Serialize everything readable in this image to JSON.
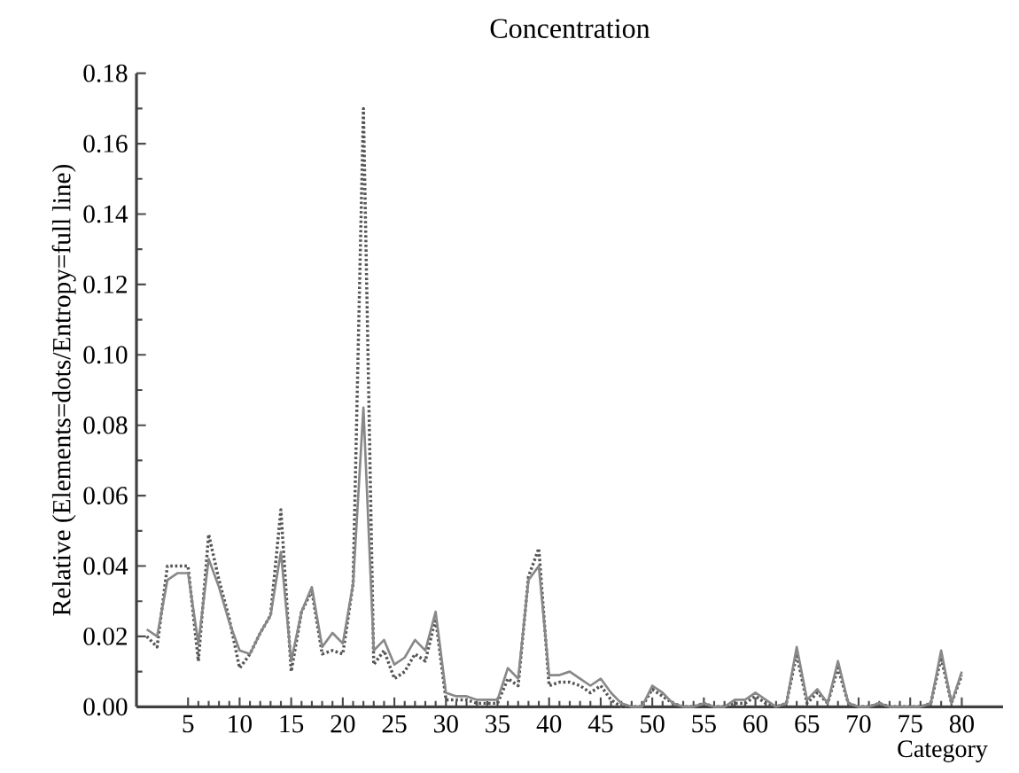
{
  "chart_data": {
    "type": "line",
    "title": "Concentration",
    "xlabel": "Category",
    "ylabel": "Relative (Elements=dots/Entropy=full line)",
    "x": [
      1,
      2,
      3,
      4,
      5,
      6,
      7,
      8,
      9,
      10,
      11,
      12,
      13,
      14,
      15,
      16,
      17,
      18,
      19,
      20,
      21,
      22,
      23,
      24,
      25,
      26,
      27,
      28,
      29,
      30,
      31,
      32,
      33,
      34,
      35,
      36,
      37,
      38,
      39,
      40,
      41,
      42,
      43,
      44,
      45,
      46,
      47,
      48,
      49,
      50,
      51,
      52,
      53,
      54,
      55,
      56,
      57,
      58,
      59,
      60,
      61,
      62,
      63,
      64,
      65,
      66,
      67,
      68,
      69,
      70,
      71,
      72,
      73,
      74,
      75,
      76,
      77,
      78,
      79,
      80
    ],
    "series": [
      {
        "color": "#555555",
        "line_style": "dotted",
        "values": [
          0.02,
          0.017,
          0.04,
          0.04,
          0.04,
          0.013,
          0.049,
          0.036,
          0.025,
          0.011,
          0.015,
          0.021,
          0.026,
          0.056,
          0.01,
          0.027,
          0.033,
          0.015,
          0.016,
          0.015,
          0.035,
          0.17,
          0.012,
          0.016,
          0.008,
          0.01,
          0.015,
          0.013,
          0.025,
          0.002,
          0.002,
          0.002,
          0.001,
          0.001,
          0.001,
          0.008,
          0.006,
          0.037,
          0.045,
          0.006,
          0.007,
          0.007,
          0.006,
          0.004,
          0.006,
          0.002,
          0.0,
          0.0,
          0.0,
          0.005,
          0.003,
          0.001,
          0.0,
          0.0,
          0.001,
          0.0,
          0.0,
          0.001,
          0.001,
          0.003,
          0.001,
          0.0,
          0.001,
          0.015,
          0.001,
          0.004,
          0.001,
          0.011,
          0.001,
          0.0,
          0.0,
          0.001,
          0.0,
          0.0,
          0.0,
          0.0,
          0.001,
          0.014,
          0.001,
          0.009
        ]
      },
      {
        "color": "#888888",
        "line_style": "solid",
        "values": [
          0.022,
          0.02,
          0.036,
          0.038,
          0.038,
          0.018,
          0.042,
          0.034,
          0.024,
          0.016,
          0.015,
          0.021,
          0.026,
          0.044,
          0.013,
          0.027,
          0.034,
          0.017,
          0.021,
          0.018,
          0.035,
          0.085,
          0.016,
          0.019,
          0.012,
          0.014,
          0.019,
          0.016,
          0.027,
          0.004,
          0.003,
          0.003,
          0.002,
          0.002,
          0.002,
          0.011,
          0.008,
          0.036,
          0.04,
          0.009,
          0.009,
          0.01,
          0.008,
          0.006,
          0.008,
          0.004,
          0.001,
          0.0,
          0.0,
          0.006,
          0.004,
          0.001,
          0.0,
          0.0,
          0.001,
          0.0,
          0.0,
          0.002,
          0.002,
          0.004,
          0.002,
          0.0,
          0.001,
          0.017,
          0.002,
          0.005,
          0.001,
          0.013,
          0.001,
          0.0,
          0.0,
          0.001,
          0.0,
          0.0,
          0.0,
          0.0,
          0.001,
          0.016,
          0.001,
          0.01
        ]
      }
    ],
    "xlim": [
      0,
      84
    ],
    "ylim": [
      0,
      0.18
    ],
    "xticks": [
      5,
      10,
      15,
      20,
      25,
      30,
      35,
      40,
      45,
      50,
      55,
      60,
      65,
      70,
      75,
      80
    ],
    "yticks": [
      {
        "value": 0,
        "label": "0.00"
      },
      {
        "value": 0.02,
        "label": "0.02"
      },
      {
        "value": 0.04,
        "label": "0.04"
      },
      {
        "value": 0.06,
        "label": "0.06"
      },
      {
        "value": 0.08,
        "label": "0.08"
      },
      {
        "value": 0.1,
        "label": "0.10"
      },
      {
        "value": 0.12,
        "label": "0.12"
      },
      {
        "value": 0.14,
        "label": "0.14"
      },
      {
        "value": 0.16,
        "label": "0.16"
      },
      {
        "value": 0.18,
        "label": "0.18"
      }
    ],
    "grid": false,
    "marker": "none"
  }
}
